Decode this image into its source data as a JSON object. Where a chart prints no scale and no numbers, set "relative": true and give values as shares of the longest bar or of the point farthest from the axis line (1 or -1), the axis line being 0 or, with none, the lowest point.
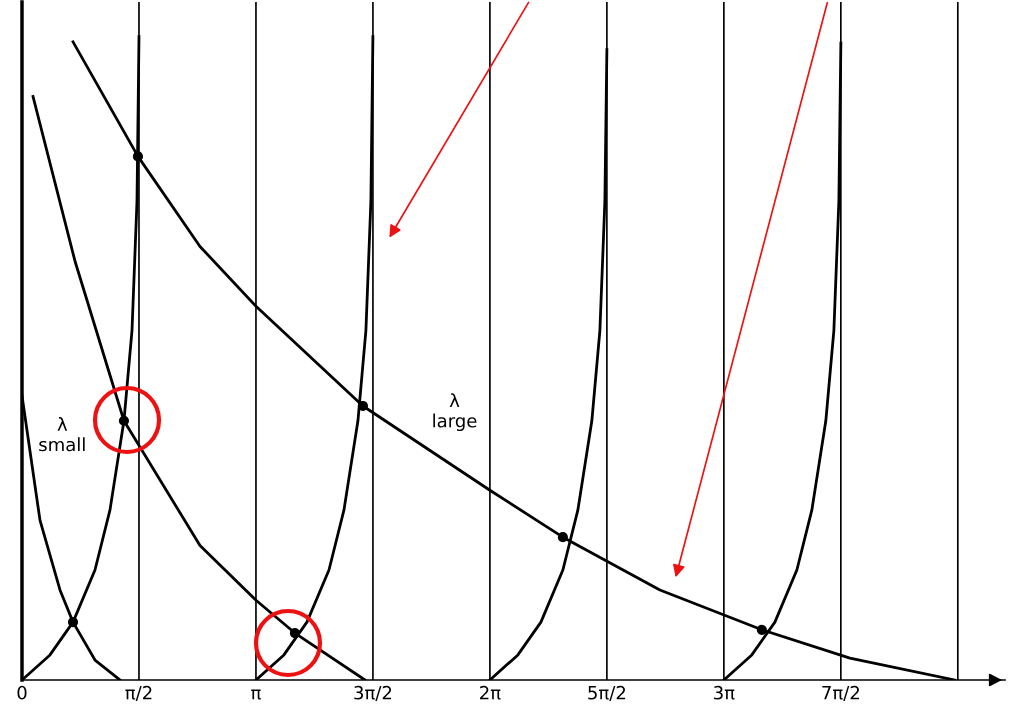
{
  "chart_data": {
    "type": "line",
    "relative": true,
    "xlim": [
      0,
      13.2
    ],
    "xticks": [
      {
        "value": 0,
        "label": "0"
      },
      {
        "value": 1.5708,
        "label": "π/2"
      },
      {
        "value": 3.1416,
        "label": "π"
      },
      {
        "value": 4.7124,
        "label": "3π/2"
      },
      {
        "value": 6.2832,
        "label": "2π"
      },
      {
        "value": 7.854,
        "label": "5π/2"
      },
      {
        "value": 9.4248,
        "label": "3π"
      },
      {
        "value": 10.9956,
        "label": "7π/2"
      }
    ],
    "series": [
      {
        "color": "#000000",
        "x": [
          0,
          0.376,
          0.685,
          0.98,
          1.181,
          1.369,
          1.477,
          1.544,
          1.571
        ],
        "values": [
          0,
          0.039,
          0.09,
          0.171,
          0.264,
          0.403,
          0.543,
          0.744,
          1.0
        ]
      },
      {
        "color": "#000000",
        "x": [
          3.142,
          3.517,
          3.826,
          4.122,
          4.323,
          4.511,
          4.618,
          4.685,
          4.712
        ],
        "values": [
          0,
          0.039,
          0.09,
          0.171,
          0.264,
          0.403,
          0.543,
          0.744,
          1.0
        ]
      },
      {
        "color": "#000000",
        "x": [
          6.283,
          6.659,
          6.968,
          7.263,
          7.464,
          7.652,
          7.76,
          7.827,
          7.854
        ],
        "values": [
          0,
          0.039,
          0.09,
          0.171,
          0.264,
          0.403,
          0.543,
          0.744,
          0.98
        ]
      },
      {
        "color": "#000000",
        "x": [
          9.425,
          9.8,
          10.11,
          10.405,
          10.606,
          10.794,
          10.902,
          10.969,
          10.996
        ],
        "values": [
          0,
          0.039,
          0.09,
          0.171,
          0.264,
          0.403,
          0.543,
          0.744,
          0.99
        ]
      },
      {
        "color": "#000000",
        "x": [
          0,
          0.242,
          0.51,
          0.685,
          0.98,
          1.316
        ],
        "values": [
          0.442,
          0.248,
          0.14,
          0.09,
          0.031,
          0
        ]
      },
      {
        "color": "#000000",
        "x": [
          0.148,
          0.712,
          1.369,
          2.39,
          3.142,
          3.665,
          4.605
        ],
        "values": [
          0.907,
          0.651,
          0.403,
          0.209,
          0.124,
          0.073,
          0
        ]
      },
      {
        "color": "#000000",
        "x": [
          0.685,
          1.557,
          2.39,
          3.142,
          4.578,
          6.283,
          7.263,
          8.566,
          9.935,
          11.117,
          12.526
        ],
        "values": [
          0.992,
          0.814,
          0.674,
          0.581,
          0.426,
          0.295,
          0.222,
          0.14,
          0.078,
          0.034,
          0
        ]
      },
      {
        "type": "scatter",
        "color": "#000000",
        "marker": "circle",
        "x": [
          0.685,
          1.369,
          1.557,
          3.665,
          4.578,
          7.263,
          9.935
        ],
        "values": [
          0.09,
          0.403,
          0.814,
          0.073,
          0.426,
          0.222,
          0.078
        ]
      }
    ],
    "ref_lines": [
      {
        "axis": "x",
        "value": 1.5708
      },
      {
        "axis": "x",
        "value": 3.1416
      },
      {
        "axis": "x",
        "value": 4.7124
      },
      {
        "axis": "x",
        "value": 6.2832
      },
      {
        "axis": "x",
        "value": 7.854
      },
      {
        "axis": "x",
        "value": 9.4248
      },
      {
        "axis": "x",
        "value": 10.9956
      },
      {
        "axis": "x",
        "value": 12.5664
      }
    ],
    "annotations": [
      "λ\nsmall",
      "λ\nlarge"
    ],
    "grid": false,
    "legend": false
  }
}
